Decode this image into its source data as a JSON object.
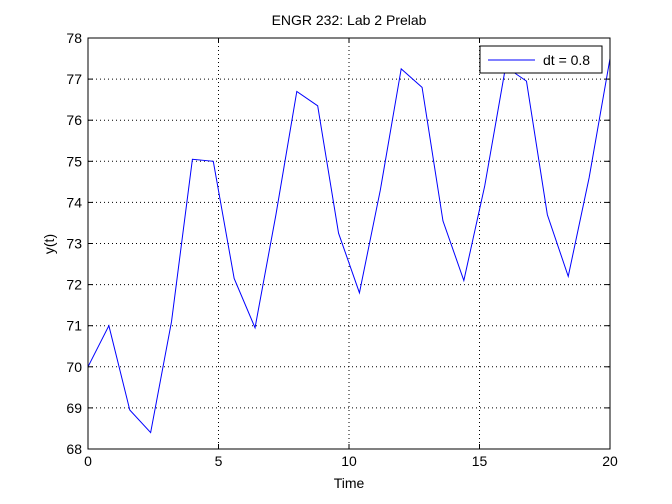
{
  "chart_data": {
    "type": "line",
    "title": "ENGR 232: Lab 2 Prelab",
    "xlabel": "Time",
    "ylabel": "y(t)",
    "xlim": [
      0,
      20
    ],
    "ylim": [
      68,
      78
    ],
    "xticks": [
      0,
      5,
      10,
      15,
      20
    ],
    "yticks": [
      68,
      69,
      70,
      71,
      72,
      73,
      74,
      75,
      76,
      77,
      78
    ],
    "grid": true,
    "grid_style": "dotted",
    "legend_position": "top-right",
    "series": [
      {
        "name": "dt = 0.8",
        "color": "#0000ff",
        "x": [
          0,
          0.8,
          1.6,
          2.4,
          3.2,
          4.0,
          4.8,
          5.6,
          6.4,
          7.2,
          8.0,
          8.8,
          9.6,
          10.4,
          11.2,
          12.0,
          12.8,
          13.6,
          14.4,
          15.2,
          16.0,
          16.8,
          17.6,
          18.4,
          19.2,
          20.0
        ],
        "y": [
          70.0,
          71.0,
          68.95,
          68.4,
          71.1,
          75.05,
          75.0,
          72.15,
          70.95,
          73.7,
          76.7,
          76.35,
          73.25,
          71.8,
          74.3,
          77.25,
          76.8,
          73.55,
          72.1,
          74.4,
          77.3,
          76.95,
          73.7,
          72.2,
          74.6,
          77.5
        ]
      }
    ]
  }
}
